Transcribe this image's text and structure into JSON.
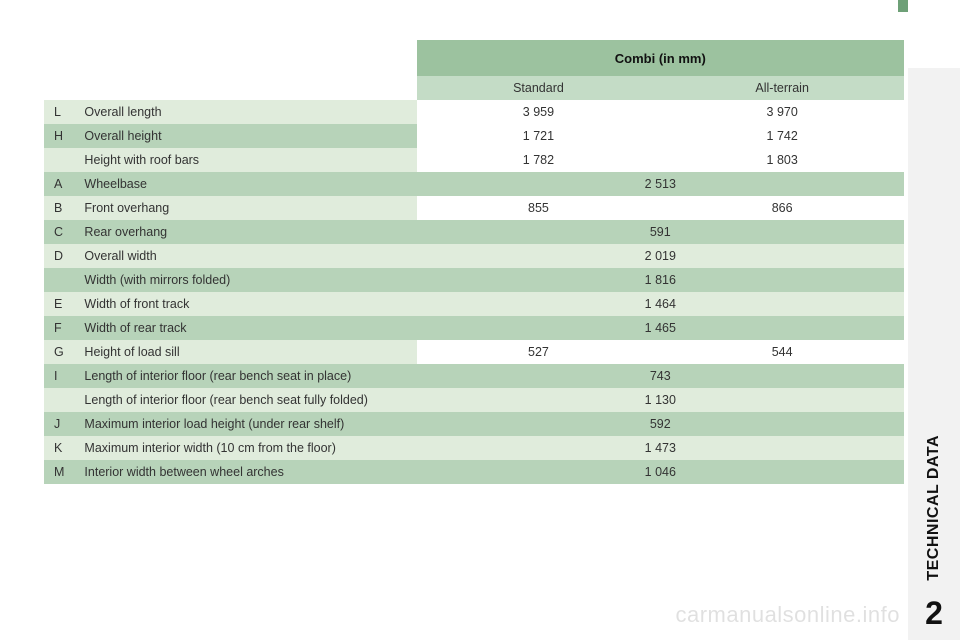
{
  "page": {
    "side_label": "TECHNICAL DATA",
    "side_number": "2",
    "watermark": "carmanualsonline.info"
  },
  "table": {
    "header_span": "Combi (in mm)",
    "sub_headers": [
      "Standard",
      "All-terrain"
    ],
    "rows": [
      {
        "code": "L",
        "label": "Overall length",
        "v1": "3 959",
        "v2": "3 970",
        "shade": "light"
      },
      {
        "code": "H",
        "label": "Overall height",
        "v1": "1 721",
        "v2": "1 742",
        "shade": "dark"
      },
      {
        "code": "",
        "label": "Height with roof bars",
        "v1": "1 782",
        "v2": "1 803",
        "shade": "light"
      },
      {
        "code": "A",
        "label": "Wheelbase",
        "span": "2 513",
        "shade": "dark"
      },
      {
        "code": "B",
        "label": "Front overhang",
        "v1": "855",
        "v2": "866",
        "shade": "light"
      },
      {
        "code": "C",
        "label": "Rear overhang",
        "span": "591",
        "shade": "dark"
      },
      {
        "code": "D",
        "label": "Overall width",
        "span": "2 019",
        "shade": "light"
      },
      {
        "code": "",
        "label": "Width (with mirrors folded)",
        "span": "1 816",
        "shade": "dark"
      },
      {
        "code": "E",
        "label": "Width of front track",
        "span": "1 464",
        "shade": "light"
      },
      {
        "code": "F",
        "label": "Width of rear track",
        "span": "1 465",
        "shade": "dark"
      },
      {
        "code": "G",
        "label": "Height of load sill",
        "v1": "527",
        "v2": "544",
        "shade": "light"
      },
      {
        "code": "I",
        "label": "Length of interior floor (rear bench seat in place)",
        "span": "743",
        "shade": "dark"
      },
      {
        "code": "",
        "label": "Length of interior floor (rear bench seat fully folded)",
        "span": "1 130",
        "shade": "light"
      },
      {
        "code": "J",
        "label": "Maximum interior load height (under rear shelf)",
        "span": "592",
        "shade": "dark"
      },
      {
        "code": "K",
        "label": "Maximum interior width (10 cm from the floor)",
        "span": "1 473",
        "shade": "light"
      },
      {
        "code": "M",
        "label": "Interior width between wheel arches",
        "span": "1 046",
        "shade": "dark"
      }
    ]
  },
  "colors": {
    "header_bg": "#9cc29f",
    "subheader_bg": "#c4dcc6",
    "row_dark": "#b7d3b9",
    "row_light": "#e0ecdc",
    "side_bg": "#f2f2f2"
  }
}
